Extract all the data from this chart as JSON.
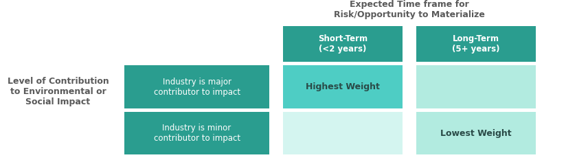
{
  "title_line1": "Expected Time frame for",
  "title_line2": "Risk/Opportunity to Materialize",
  "title_color": "#5a5a5a",
  "left_axis_label": "Level of Contribution\nto Environmental or\nSocial Impact",
  "left_axis_color": "#5a5a5a",
  "col_headers": [
    "Short-Term\n(<2 years)",
    "Long-Term\n(5+ years)"
  ],
  "row_labels": [
    "Industry is major\ncontributor to impact",
    "Industry is minor\ncontributor to impact"
  ],
  "underline_words": [
    "major",
    "minor"
  ],
  "col_header_bg": "#2a9d8f",
  "col_header_text": "#ffffff",
  "row_label_bg": "#2a9d8f",
  "row_label_text": "#ffffff",
  "cell_colors": [
    [
      "#4ecdc4",
      "#b2ebe0"
    ],
    [
      "#d4f5f0",
      "#b2ebe0"
    ]
  ],
  "cell_texts": [
    [
      "Highest Weight",
      ""
    ],
    [
      "",
      "Lowest Weight"
    ]
  ],
  "cell_text_bold": true,
  "cell_text_color": "#2a4a47",
  "background_color": "#ffffff",
  "fig_width": 8.56,
  "fig_height": 2.36
}
